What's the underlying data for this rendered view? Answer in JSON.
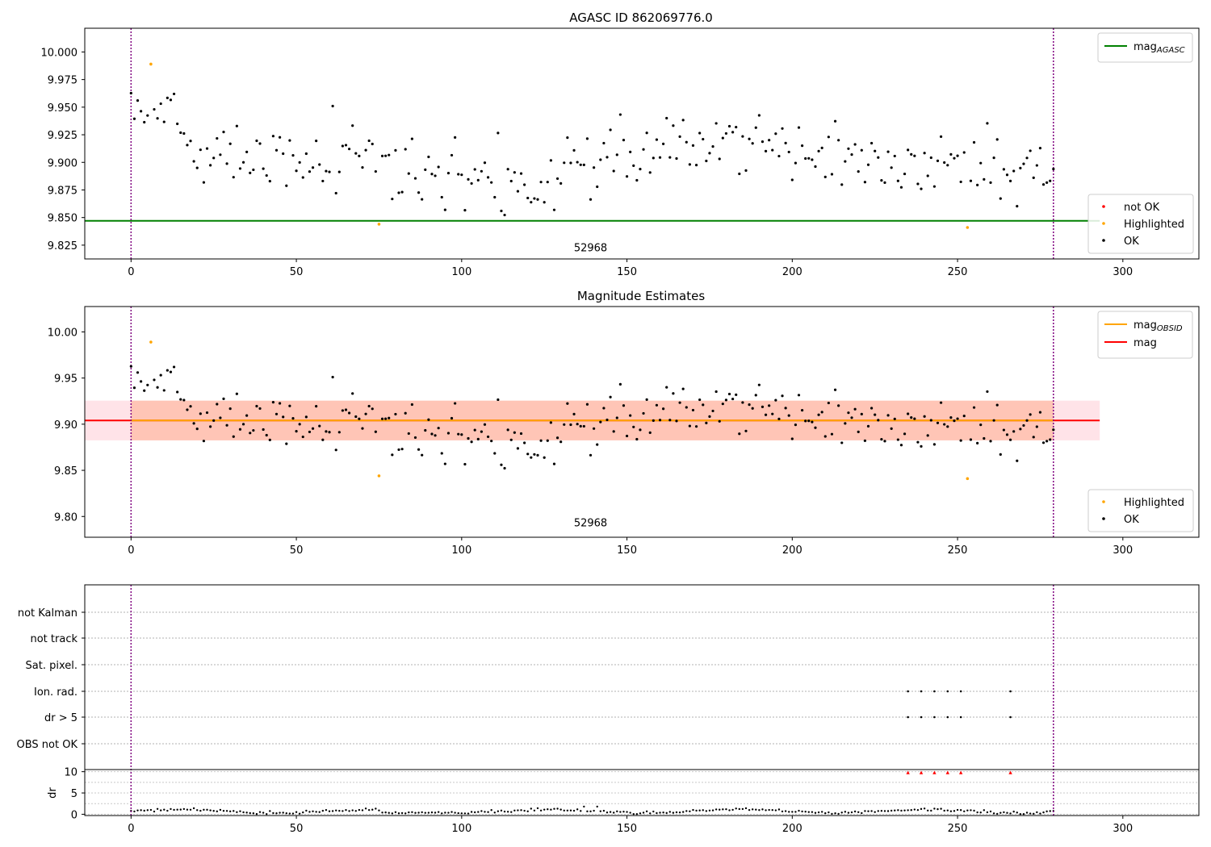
{
  "chart_data": [
    {
      "type": "scatter",
      "title": "AGASC ID 862069776.0",
      "xlim": [
        -14,
        323
      ],
      "ylim": [
        9.8125,
        10.0215
      ],
      "xticks": [
        0,
        50,
        100,
        150,
        200,
        250,
        300
      ],
      "yticks": [
        9.825,
        9.85,
        9.875,
        9.9,
        9.925,
        9.95,
        9.975,
        10.0
      ],
      "ytick_labels": [
        "9.825",
        "9.850",
        "9.875",
        "9.900",
        "9.925",
        "9.950",
        "9.975",
        "10.000"
      ],
      "annotation": {
        "text": "52968",
        "x": 139,
        "y": 9.8195
      },
      "hlines": [
        {
          "name": "mag_AGASC",
          "y": 9.847,
          "color": "#008000",
          "xmin": -14,
          "xmax": 293
        }
      ],
      "vlines": [
        {
          "x": 0,
          "color": "#800080"
        },
        {
          "x": 279,
          "color": "#800080"
        }
      ],
      "legend_lines": [
        {
          "base": "mag",
          "sub": "AGASC",
          "color": "#008000"
        }
      ],
      "legend_lines_position": "top-right",
      "legend_markers": [
        {
          "label": "not OK",
          "color": "#ff0000"
        },
        {
          "label": "Highlighted",
          "color": "#ffa500"
        },
        {
          "label": "OK",
          "color": "#000000"
        }
      ],
      "legend_markers_position": "bottom-right",
      "series": [
        {
          "name": "Highlighted",
          "color": "#ffa500",
          "points": [
            [
              6,
              9.989
            ],
            [
              75,
              9.844
            ],
            [
              253,
              9.841
            ]
          ]
        }
      ]
    },
    {
      "type": "scatter",
      "title": "Magnitude Estimates",
      "xlim": [
        -14,
        323
      ],
      "ylim": [
        9.7775,
        10.0275
      ],
      "xticks": [
        0,
        50,
        100,
        150,
        200,
        250,
        300
      ],
      "yticks": [
        9.8,
        9.85,
        9.9,
        9.95,
        10.0
      ],
      "ytick_labels": [
        "9.80",
        "9.85",
        "9.90",
        "9.95",
        "10.00"
      ],
      "annotation": {
        "text": "52968",
        "x": 139,
        "y": 9.7895
      },
      "bands": [
        {
          "y0": 9.8825,
          "y1": 9.9255,
          "xmin": -14,
          "xmax": 293,
          "color": "#ffc0cb",
          "opacity": 0.45
        },
        {
          "y0": 9.8825,
          "y1": 9.9255,
          "xmin": 0,
          "xmax": 279,
          "color": "#ffa07a",
          "opacity": 0.45
        }
      ],
      "hlines": [
        {
          "name": "mag",
          "y": 9.904,
          "color": "#ff0000",
          "xmin": -14,
          "xmax": 293
        },
        {
          "name": "mag_OBSID",
          "y": 9.904,
          "color": "#ffa500",
          "xmin": 0,
          "xmax": 279
        }
      ],
      "vlines": [
        {
          "x": 0,
          "color": "#800080"
        },
        {
          "x": 279,
          "color": "#800080"
        }
      ],
      "legend_lines": [
        {
          "base": "mag",
          "sub": "OBSID",
          "color": "#ffa500"
        },
        {
          "base": "mag",
          "sub": "",
          "color": "#ff0000"
        }
      ],
      "legend_lines_position": "top-right",
      "legend_markers": [
        {
          "label": "Highlighted",
          "color": "#ffa500"
        },
        {
          "label": "OK",
          "color": "#000000"
        }
      ],
      "legend_markers_position": "bottom-right",
      "series": [
        {
          "name": "Highlighted",
          "color": "#ffa500",
          "points": [
            [
              6,
              9.989
            ],
            [
              75,
              9.844
            ],
            [
              253,
              9.841
            ]
          ]
        }
      ]
    },
    {
      "type": "scatter",
      "title": "",
      "xlim": [
        -14,
        323
      ],
      "xticks": [
        0,
        50,
        100,
        150,
        200,
        250,
        300
      ],
      "flag_labels": [
        "not Kalman",
        "not track",
        "Sat. pixel.",
        "Ion. rad.",
        "dr > 5",
        "OBS not OK"
      ],
      "flags": {
        "Ion. rad.": [
          235,
          239,
          243,
          247,
          251,
          266
        ],
        "dr > 5": [
          235,
          239,
          243,
          247,
          251,
          266
        ]
      },
      "dr": {
        "ylabel": "dr",
        "ylim": [
          -0.3,
          10.5
        ],
        "yticks": [
          0,
          5,
          10
        ],
        "ytick_labels": [
          "0",
          "5",
          "10"
        ],
        "clipped_markers": {
          "color": "#ff0000",
          "x": [
            235,
            239,
            243,
            247,
            251,
            266
          ],
          "y": 9.8
        }
      },
      "vlines": [
        {
          "x": 0,
          "color": "#800080"
        },
        {
          "x": 279,
          "color": "#800080"
        }
      ]
    }
  ]
}
